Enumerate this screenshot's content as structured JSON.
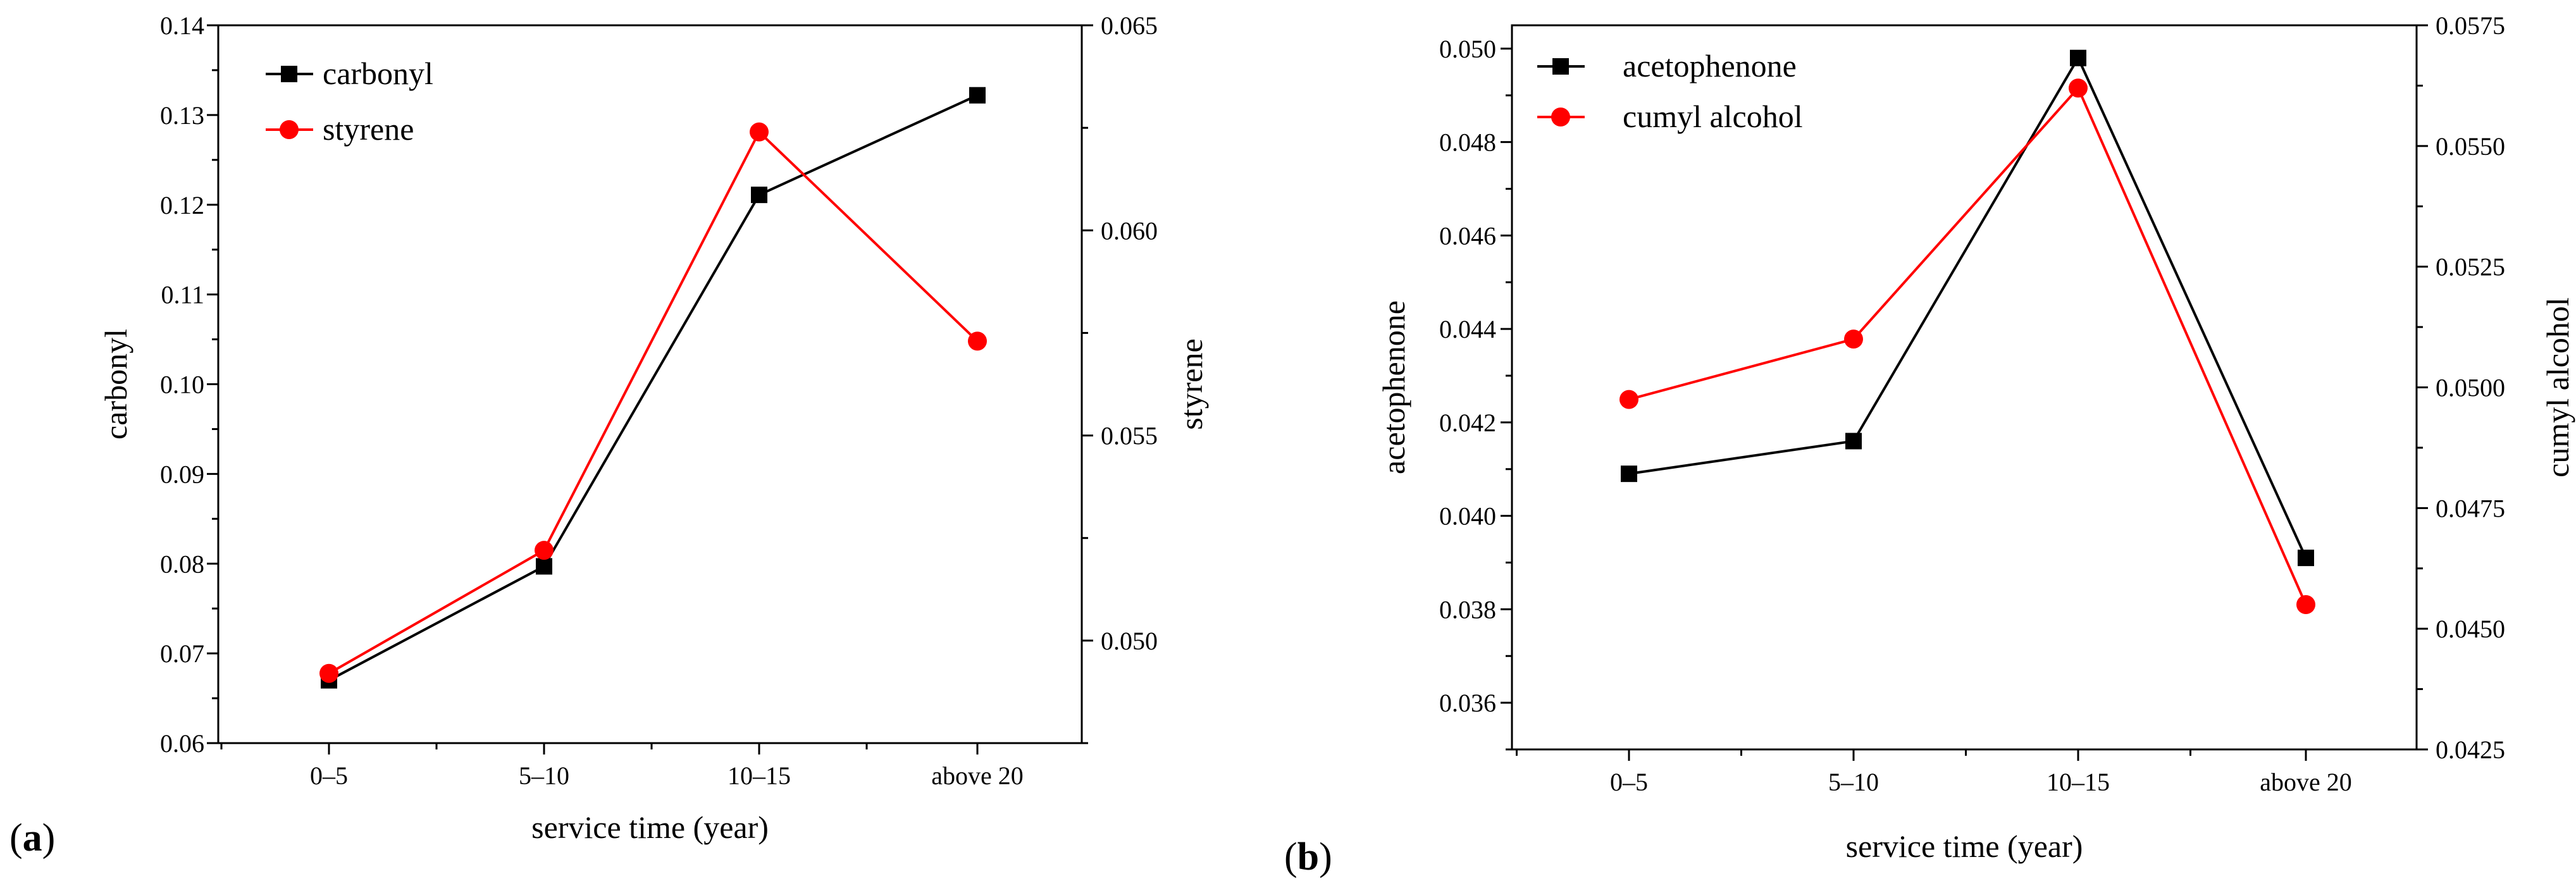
{
  "chart_data": [
    {
      "type": "line",
      "panel_label": "a",
      "categories": [
        "0–5",
        "5–10",
        "10–15",
        "above 20"
      ],
      "xlabel": "service time (year)",
      "left_axis": {
        "label": "carbonyl",
        "ylim": [
          0.06,
          0.14
        ],
        "ticks": [
          "0.06",
          "0.07",
          "0.08",
          "0.09",
          "0.10",
          "0.11",
          "0.12",
          "0.13",
          "0.14"
        ]
      },
      "right_axis": {
        "label": "styrene",
        "ylim": [
          0.0475,
          0.065
        ],
        "ticks": [
          "0.050",
          "0.055",
          "0.060",
          "0.065"
        ]
      },
      "series": [
        {
          "name": "carbonyl",
          "axis": "left",
          "color": "#000000",
          "marker": "square",
          "values": [
            0.067,
            0.0797,
            0.1211,
            0.1322
          ]
        },
        {
          "name": "styrene",
          "axis": "right",
          "color": "#ff0000",
          "marker": "circle",
          "values": [
            0.0492,
            0.0522,
            0.0624,
            0.0573
          ]
        }
      ],
      "legend": "top-left"
    },
    {
      "type": "line",
      "panel_label": "b",
      "categories": [
        "0–5",
        "5–10",
        "10–15",
        "above 20"
      ],
      "xlabel": "service time (year)",
      "left_axis": {
        "label": "acetophenone",
        "ylim": [
          0.035,
          0.0505
        ],
        "ticks": [
          "0.036",
          "0.038",
          "0.040",
          "0.042",
          "0.044",
          "0.046",
          "0.048",
          "0.050"
        ]
      },
      "right_axis": {
        "label": "cumyl alcohol",
        "ylim": [
          0.0425,
          0.0575
        ],
        "ticks": [
          "0.0425",
          "0.0450",
          "0.0475",
          "0.0500",
          "0.0525",
          "0.0550",
          "0.0575"
        ]
      },
      "series": [
        {
          "name": "acetophenone",
          "axis": "left",
          "color": "#000000",
          "marker": "square",
          "values": [
            0.0409,
            0.0416,
            0.0498,
            0.0391
          ]
        },
        {
          "name": "cumyl alcohol",
          "axis": "right",
          "color": "#ff0000",
          "marker": "circle",
          "values": [
            0.04975,
            0.051,
            0.0562,
            0.0455
          ]
        }
      ],
      "legend": "top-left"
    }
  ]
}
